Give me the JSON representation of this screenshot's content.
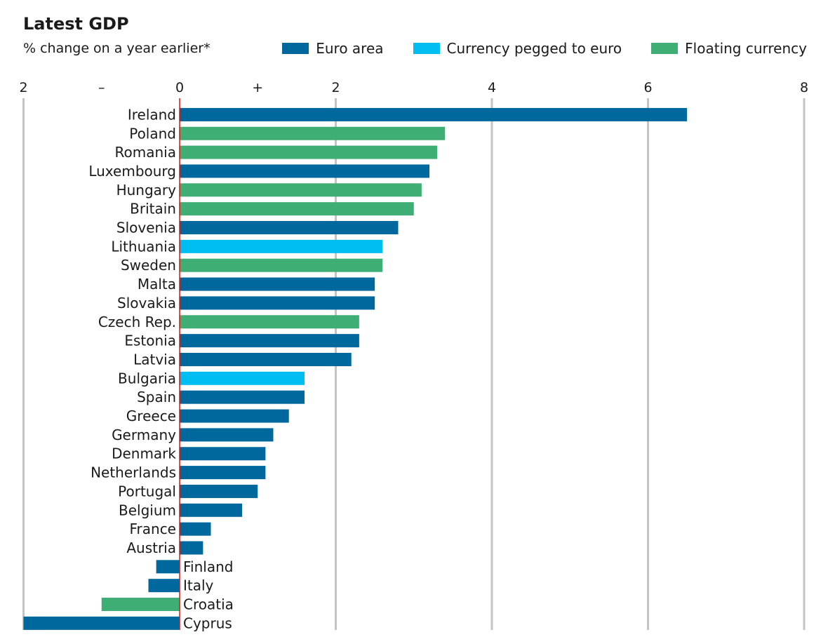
{
  "header": {
    "title": "Latest GDP",
    "subtitle": "% change on a year earlier*"
  },
  "colors": {
    "euro_area": "#00689d",
    "pegged": "#00bdf2",
    "floating": "#3fae74",
    "zero_line": "#e3120b",
    "grid": "#c4c4c4"
  },
  "chart_data": {
    "type": "bar",
    "orientation": "horizontal",
    "title": "Latest GDP",
    "subtitle": "% change on a year earlier*",
    "xlim": [
      -2,
      8
    ],
    "x_ticks": [
      -2,
      -1,
      0,
      1,
      2,
      4,
      6,
      8
    ],
    "x_tick_labels": [
      "2",
      "–",
      "0",
      "+",
      "2",
      "4",
      "6",
      "8"
    ],
    "grid": true,
    "legend": {
      "placement": "top-right",
      "entries": [
        {
          "key": "euro_area",
          "label": "Euro area",
          "color": "#00689d"
        },
        {
          "key": "pegged",
          "label": "Currency pegged to euro",
          "color": "#00bdf2"
        },
        {
          "key": "floating",
          "label": "Floating currency",
          "color": "#3fae74"
        }
      ]
    },
    "bars": [
      {
        "label": "Ireland",
        "value": 6.5,
        "group": "euro_area"
      },
      {
        "label": "Poland",
        "value": 3.4,
        "group": "floating"
      },
      {
        "label": "Romania",
        "value": 3.3,
        "group": "floating"
      },
      {
        "label": "Luxembourg",
        "value": 3.2,
        "group": "euro_area"
      },
      {
        "label": "Hungary",
        "value": 3.1,
        "group": "floating"
      },
      {
        "label": "Britain",
        "value": 3.0,
        "group": "floating"
      },
      {
        "label": "Slovenia",
        "value": 2.8,
        "group": "euro_area"
      },
      {
        "label": "Lithuania",
        "value": 2.6,
        "group": "pegged"
      },
      {
        "label": "Sweden",
        "value": 2.6,
        "group": "floating"
      },
      {
        "label": "Malta",
        "value": 2.5,
        "group": "euro_area"
      },
      {
        "label": "Slovakia",
        "value": 2.5,
        "group": "euro_area"
      },
      {
        "label": "Czech Rep.",
        "value": 2.3,
        "group": "floating"
      },
      {
        "label": "Estonia",
        "value": 2.3,
        "group": "euro_area"
      },
      {
        "label": "Latvia",
        "value": 2.2,
        "group": "euro_area"
      },
      {
        "label": "Bulgaria",
        "value": 1.6,
        "group": "pegged"
      },
      {
        "label": "Spain",
        "value": 1.6,
        "group": "euro_area"
      },
      {
        "label": "Greece",
        "value": 1.4,
        "group": "euro_area"
      },
      {
        "label": "Germany",
        "value": 1.2,
        "group": "euro_area"
      },
      {
        "label": "Denmark",
        "value": 1.1,
        "group": "euro_area"
      },
      {
        "label": "Netherlands",
        "value": 1.1,
        "group": "euro_area"
      },
      {
        "label": "Portugal",
        "value": 1.0,
        "group": "euro_area"
      },
      {
        "label": "Belgium",
        "value": 0.8,
        "group": "euro_area"
      },
      {
        "label": "France",
        "value": 0.4,
        "group": "euro_area"
      },
      {
        "label": "Austria",
        "value": 0.3,
        "group": "euro_area"
      },
      {
        "label": "Finland",
        "value": -0.3,
        "group": "euro_area"
      },
      {
        "label": "Italy",
        "value": -0.4,
        "group": "euro_area"
      },
      {
        "label": "Croatia",
        "value": -1.0,
        "group": "floating"
      },
      {
        "label": "Cyprus",
        "value": -2.0,
        "group": "euro_area"
      }
    ]
  }
}
